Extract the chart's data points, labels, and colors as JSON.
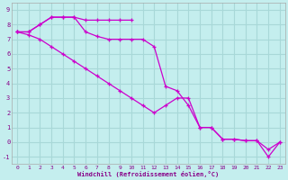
{
  "xlabel": "Windchill (Refroidissement éolien,°C)",
  "bg_color": "#c4eeee",
  "grid_color": "#a8d8d8",
  "line_color": "#cc00cc",
  "line1_x": [
    0,
    1,
    2,
    3,
    4,
    5,
    6,
    7,
    8,
    9,
    10
  ],
  "line1_y": [
    7.5,
    7.5,
    8.0,
    8.5,
    8.5,
    8.5,
    8.3,
    8.3,
    8.3,
    8.3,
    8.3
  ],
  "line2_x": [
    0,
    1,
    2,
    3,
    4,
    5,
    6,
    7,
    8,
    9,
    10,
    11,
    12,
    13,
    14,
    15,
    16,
    17,
    18,
    19,
    20,
    21,
    22,
    23
  ],
  "line2_y": [
    7.5,
    7.5,
    8.0,
    8.5,
    8.5,
    8.5,
    7.5,
    7.2,
    7.0,
    7.0,
    7.0,
    7.0,
    6.5,
    3.8,
    3.5,
    2.5,
    1.0,
    1.0,
    0.2,
    0.2,
    0.1,
    0.1,
    -0.5,
    0.0
  ],
  "line3_x": [
    0,
    1,
    2,
    3,
    4,
    5,
    6,
    7,
    8,
    9,
    10,
    11,
    12,
    13,
    14,
    15,
    16,
    17,
    18,
    19,
    20,
    21,
    22,
    23
  ],
  "line3_y": [
    7.5,
    7.3,
    7.0,
    6.5,
    6.0,
    5.5,
    5.0,
    4.5,
    4.0,
    3.5,
    3.0,
    2.5,
    2.0,
    2.5,
    3.0,
    3.0,
    1.0,
    1.0,
    0.2,
    0.2,
    0.1,
    0.1,
    -1.0,
    0.0
  ],
  "xlim": [
    -0.5,
    23.5
  ],
  "ylim": [
    -1.5,
    9.5
  ],
  "yticks": [
    -1,
    0,
    1,
    2,
    3,
    4,
    5,
    6,
    7,
    8,
    9
  ],
  "xticks": [
    0,
    1,
    2,
    3,
    4,
    5,
    6,
    7,
    8,
    9,
    10,
    11,
    12,
    13,
    14,
    15,
    16,
    17,
    18,
    19,
    20,
    21,
    22,
    23
  ]
}
